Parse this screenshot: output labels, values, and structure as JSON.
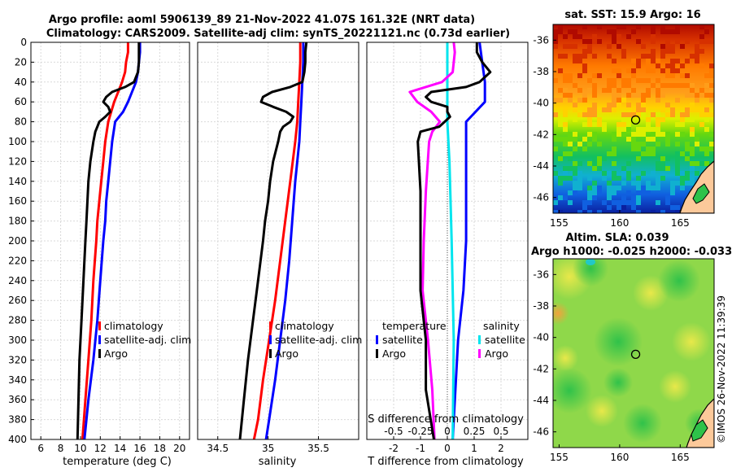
{
  "header": {
    "line1": "Argo profile: aoml 5906139_89 21-Nov-2022 41.07S 161.32E (NRT data)",
    "line2": "Climatology: CARS2009. Satellite-adj clim: synTS_20221121.nc (0.73d earlier)"
  },
  "credit": "©IMOS 26-Nov-2022 11:39:39",
  "colors": {
    "clim": "#ff0000",
    "sat": "#0000ff",
    "argo": "#000000",
    "sat_s": "#00e5ee",
    "argo_s": "#ff00ff"
  },
  "chart_data": [
    {
      "type": "line",
      "name": "temperature",
      "xlabel": "temperature (deg C)",
      "ylabel": "",
      "xlim": [
        5,
        21
      ],
      "ylim": [
        400,
        0
      ],
      "xticks": [
        6,
        8,
        10,
        12,
        14,
        16,
        18,
        20
      ],
      "yticks": [
        0,
        20,
        40,
        60,
        80,
        100,
        120,
        140,
        160,
        180,
        200,
        220,
        240,
        260,
        280,
        300,
        320,
        340,
        360,
        380,
        400
      ],
      "legend": [
        "climatology",
        "satellite-adj. clim",
        "Argo"
      ],
      "series": [
        {
          "name": "climatology",
          "color": "#ff0000",
          "depth": [
            0,
            10,
            20,
            30,
            40,
            50,
            60,
            70,
            80,
            100,
            120,
            140,
            160,
            180,
            200,
            240,
            280,
            320,
            360,
            400
          ],
          "values": [
            14.8,
            14.8,
            14.6,
            14.5,
            14.2,
            13.8,
            13.4,
            13.1,
            12.8,
            12.5,
            12.3,
            12.1,
            11.9,
            11.7,
            11.6,
            11.3,
            11.1,
            10.8,
            10.5,
            10.2
          ]
        },
        {
          "name": "satellite-adj. clim",
          "color": "#0000ff",
          "depth": [
            0,
            10,
            20,
            30,
            40,
            50,
            60,
            70,
            80,
            100,
            120,
            140,
            160,
            180,
            200,
            240,
            280,
            320,
            360,
            400
          ],
          "values": [
            16.0,
            16.0,
            15.9,
            15.8,
            15.6,
            15.2,
            14.8,
            14.3,
            13.5,
            13.2,
            13.0,
            12.8,
            12.6,
            12.5,
            12.3,
            12.0,
            11.7,
            11.3,
            10.8,
            10.4
          ]
        },
        {
          "name": "Argo",
          "color": "#000000",
          "depth": [
            0,
            10,
            20,
            30,
            40,
            45,
            50,
            55,
            60,
            65,
            70,
            75,
            80,
            85,
            90,
            100,
            120,
            140,
            160,
            180,
            200,
            240,
            280,
            320,
            360,
            400
          ],
          "values": [
            15.9,
            15.9,
            15.9,
            15.8,
            15.4,
            14.5,
            13.2,
            12.6,
            12.3,
            12.8,
            13.0,
            12.5,
            11.9,
            11.7,
            11.5,
            11.3,
            11.0,
            10.8,
            10.7,
            10.6,
            10.5,
            10.3,
            10.1,
            9.9,
            9.8,
            9.7
          ]
        }
      ]
    },
    {
      "type": "line",
      "name": "salinity",
      "xlabel": "salinity",
      "ylabel": "",
      "xlim": [
        34.3,
        35.9
      ],
      "ylim": [
        400,
        0
      ],
      "xticks": [
        34.5,
        35,
        35.5
      ],
      "xticklabels": [
        "34.5",
        "35",
        "35.5"
      ],
      "legend": [
        "climatology",
        "satellite-adj. clim",
        "Argo"
      ],
      "series": [
        {
          "name": "climatology",
          "color": "#ff0000",
          "depth": [
            0,
            20,
            40,
            60,
            80,
            100,
            140,
            180,
            220,
            260,
            300,
            340,
            380,
            400
          ],
          "values": [
            35.32,
            35.32,
            35.31,
            35.3,
            35.29,
            35.27,
            35.22,
            35.17,
            35.12,
            35.07,
            35.01,
            34.95,
            34.9,
            34.86
          ]
        },
        {
          "name": "satellite-adj. clim",
          "color": "#0000ff",
          "depth": [
            0,
            20,
            40,
            60,
            80,
            100,
            140,
            180,
            220,
            260,
            300,
            340,
            380,
            400
          ],
          "values": [
            35.35,
            35.35,
            35.34,
            35.33,
            35.32,
            35.31,
            35.27,
            35.24,
            35.21,
            35.17,
            35.12,
            35.07,
            35.01,
            34.98
          ]
        },
        {
          "name": "Argo",
          "color": "#000000",
          "depth": [
            0,
            10,
            20,
            30,
            40,
            45,
            50,
            55,
            60,
            65,
            70,
            75,
            80,
            85,
            90,
            100,
            120,
            140,
            160,
            180,
            200,
            240,
            280,
            320,
            360,
            400
          ],
          "values": [
            35.38,
            35.37,
            35.37,
            35.36,
            35.34,
            35.22,
            35.04,
            34.95,
            34.93,
            35.05,
            35.18,
            35.25,
            35.22,
            35.15,
            35.12,
            35.1,
            35.05,
            35.02,
            35.0,
            34.97,
            34.95,
            34.9,
            34.85,
            34.8,
            34.76,
            34.72
          ]
        }
      ]
    },
    {
      "type": "line",
      "name": "differences",
      "xlabel": "T difference from climatology",
      "xlabel_top": "S difference from climatology",
      "xlim": [
        -3,
        3
      ],
      "ylim": [
        400,
        0
      ],
      "xticks": [
        -2,
        -1,
        0,
        1,
        2
      ],
      "xticks_s": [
        -0.5,
        -0.25,
        0,
        0.25,
        0.5
      ],
      "xticklabels_s": [
        "-0.5",
        "-0.25",
        "0",
        "0.25",
        "0.5"
      ],
      "legend_t": {
        "title": "temperature",
        "entries": [
          "satellite",
          "Argo"
        ]
      },
      "legend_s": {
        "title": "salinity",
        "entries": [
          "satellite",
          "Argo"
        ]
      },
      "series": [
        {
          "name": "T satellite",
          "color": "#0000ff",
          "depth": [
            0,
            20,
            40,
            60,
            80,
            100,
            150,
            200,
            250,
            300,
            350,
            400
          ],
          "values": [
            1.2,
            1.3,
            1.4,
            1.4,
            0.7,
            0.7,
            0.7,
            0.7,
            0.6,
            0.4,
            0.3,
            0.2
          ]
        },
        {
          "name": "T Argo",
          "color": "#000000",
          "depth": [
            0,
            10,
            20,
            30,
            40,
            45,
            50,
            55,
            60,
            65,
            70,
            75,
            80,
            85,
            90,
            100,
            150,
            200,
            250,
            300,
            350,
            400
          ],
          "values": [
            1.1,
            1.1,
            1.3,
            1.6,
            1.2,
            0.7,
            -0.6,
            -0.8,
            -0.6,
            0.0,
            0.0,
            0.1,
            -0.1,
            -0.3,
            -1.0,
            -1.1,
            -1.0,
            -1.0,
            -1.0,
            -0.8,
            -0.8,
            -0.5
          ]
        },
        {
          "name": "S satellite",
          "color": "#00e5ee",
          "depth": [
            0,
            20,
            40,
            80,
            120,
            200,
            300,
            400
          ],
          "values": [
            0.0,
            0.0,
            0.0,
            0.0,
            0.02,
            0.04,
            0.06,
            0.05
          ]
        },
        {
          "name": "S Argo",
          "color": "#ff00ff",
          "depth": [
            0,
            10,
            20,
            30,
            40,
            50,
            60,
            70,
            80,
            90,
            100,
            150,
            200,
            250,
            300,
            350,
            400
          ],
          "values": [
            0.06,
            0.07,
            0.06,
            0.05,
            -0.05,
            -0.35,
            -0.28,
            -0.15,
            -0.07,
            -0.14,
            -0.17,
            -0.2,
            -0.22,
            -0.23,
            -0.18,
            -0.14,
            -0.12
          ]
        }
      ]
    },
    {
      "type": "heatmap",
      "name": "sst-map",
      "title": "sat. SST: 15.9 Argo: 16",
      "xlim": [
        154.5,
        167.8
      ],
      "ylim": [
        -47,
        -35
      ],
      "xticks": [
        155,
        160,
        165
      ],
      "yticks": [
        -36,
        -38,
        -40,
        -42,
        -44,
        -46
      ],
      "argo_position": [
        161.32,
        -41.07
      ]
    },
    {
      "type": "heatmap",
      "name": "sla-map",
      "title": "Altim. SLA: 0.039",
      "subtitle": "Argo h1000: -0.025 h2000: -0.033",
      "xlim": [
        154.5,
        167.8
      ],
      "ylim": [
        -47,
        -35
      ],
      "xticks": [
        155,
        160,
        165
      ],
      "yticks": [
        -36,
        -38,
        -40,
        -42,
        -44,
        -46
      ],
      "argo_position": [
        161.32,
        -41.07
      ]
    }
  ]
}
